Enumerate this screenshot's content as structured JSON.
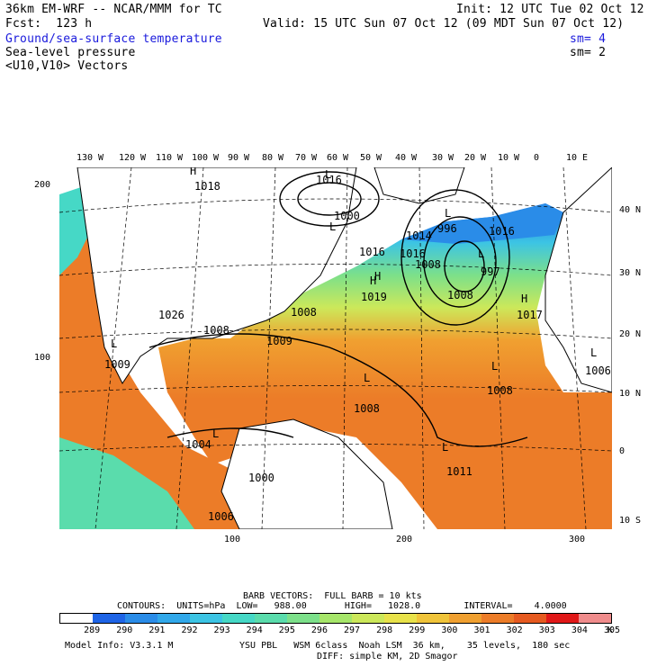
{
  "header": {
    "model_line": "36km EM-WRF -- NCAR/MMM for TC",
    "init_line": "Init: 12 UTC Tue 02 Oct 12",
    "fcst_line": "Fcst:  123 h",
    "valid_line": "Valid: 15 UTC Sun 07 Oct 12 (09 MDT Sun 07 Oct 12)",
    "field1": "Ground/sea-surface temperature",
    "field1_sm": "sm= 4",
    "field2": "Sea-level pressure",
    "field2_sm": "sm= 2",
    "field3": "<U10,V10> Vectors"
  },
  "axes": {
    "top_lon": [
      "130 W",
      "120 W",
      "110 W",
      "100 W",
      "90 W",
      "80 W",
      "70 W",
      "60 W",
      "50 W",
      "40 W",
      "30 W",
      "20 W",
      "10 W",
      "0",
      "10 E"
    ],
    "left": [
      "200",
      "100"
    ],
    "right_lat": [
      "40 N",
      "30 N",
      "20 N",
      "10 N",
      "0",
      "10 S"
    ],
    "bottom": [
      "100",
      "200",
      "300"
    ]
  },
  "map_labels": {
    "highs": [
      "H",
      "H",
      "H",
      "H"
    ],
    "lows": [
      "L",
      "L",
      "L",
      "L",
      "L",
      "L",
      "L",
      "L",
      "L",
      "L"
    ],
    "pressure_values": [
      "1018",
      "1000",
      "1016",
      "1008",
      "1016",
      "1016",
      "1008",
      "1019",
      "1008",
      "1026",
      "1009",
      "1008",
      "997",
      "1017",
      "1009",
      "1008",
      "1008",
      "1006",
      "1000",
      "1011",
      "996",
      "1004",
      "1006",
      "1016",
      "1014"
    ]
  },
  "legend": {
    "barb": "BARB VECTORS:  FULL BARB = 10 kts",
    "contours": "CONTOURS:  UNITS=hPa  LOW=   988.00       HIGH=   1028.0        INTERVAL=    4.0000",
    "colorbar_values": [
      "289",
      "290",
      "291",
      "292",
      "293",
      "294",
      "295",
      "296",
      "297",
      "298",
      "299",
      "300",
      "301",
      "302",
      "303",
      "304",
      "305"
    ],
    "colorbar_unit": "K",
    "colorbar_colors": [
      "#ffffff",
      "#1e64e6",
      "#2a8ce8",
      "#31a8ea",
      "#3cc4e4",
      "#46d8c6",
      "#5adcac",
      "#7ce08a",
      "#a6e66a",
      "#cce85a",
      "#e8e24a",
      "#f0c43a",
      "#f0a030",
      "#ec7c28",
      "#e65a20",
      "#e01818",
      "#f08c8c"
    ],
    "model_info": "Model Info: V3.3.1 M",
    "physics_line1": "YSU PBL   WSM 6class  Noah LSM  36 km,    35 levels,  180 sec",
    "physics_line2": "DIFF: simple KM, 2D Smagor"
  }
}
